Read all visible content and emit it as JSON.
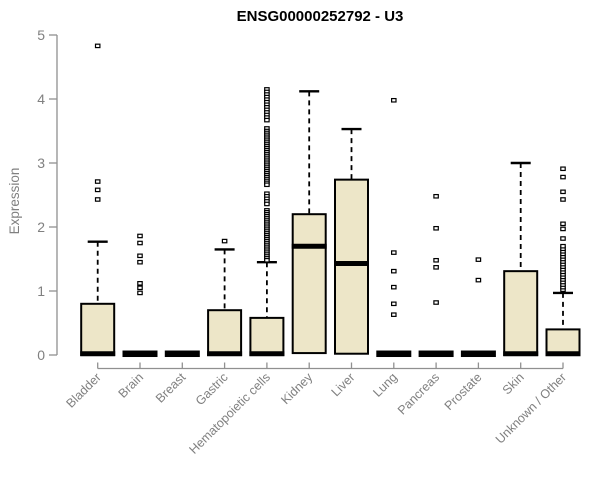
{
  "chart_data": {
    "type": "boxplot",
    "title": "ENSG00000252792 - U3",
    "ylabel": "Expression",
    "xlabel": "",
    "ylim": [
      0,
      5
    ],
    "y_ticks": [
      0,
      1,
      2,
      3,
      4,
      5
    ],
    "grid": false,
    "legend": false,
    "box_fill": "#EDE6C8",
    "box_stroke": "#000000",
    "axis_color": "#909090",
    "label_color": "#808080",
    "categories": [
      "Bladder",
      "Brain",
      "Breast",
      "Gastric",
      "Hematopoietic cells",
      "Kidney",
      "Liver",
      "Lung",
      "Pancreas",
      "Prostate",
      "Skin",
      "Unknown / Other"
    ],
    "boxes": [
      {
        "category": "Bladder",
        "q1": 0,
        "median": 0.02,
        "q3": 0.8,
        "whisker_low": 0,
        "whisker_high": 1.77,
        "outliers": [
          2.43,
          2.58,
          2.71,
          4.83
        ]
      },
      {
        "category": "Brain",
        "q1": 0,
        "median": 0.02,
        "q3": 0.03,
        "whisker_low": 0,
        "whisker_high": 0.03,
        "outliers": [
          0.97,
          1.05,
          1.12,
          1.45,
          1.55,
          1.75,
          1.86
        ]
      },
      {
        "category": "Breast",
        "q1": 0,
        "median": 0.02,
        "q3": 0.03,
        "whisker_low": 0,
        "whisker_high": 0.03,
        "outliers": []
      },
      {
        "category": "Gastric",
        "q1": 0,
        "median": 0.02,
        "q3": 0.7,
        "whisker_low": 0,
        "whisker_high": 1.65,
        "outliers": [
          1.78
        ]
      },
      {
        "category": "Hematopoietic cells",
        "q1": 0,
        "median": 0.02,
        "q3": 0.58,
        "whisker_low": 0,
        "whisker_high": 1.45,
        "outliers": [
          4.15,
          4.11,
          4.07,
          4.03,
          3.99,
          3.95,
          3.91,
          3.87,
          3.83,
          3.79,
          3.75,
          3.71,
          3.67,
          3.54,
          3.5,
          3.47,
          3.44,
          3.41,
          3.38,
          3.35,
          3.32,
          3.29,
          3.26,
          3.23,
          3.2,
          3.17,
          3.14,
          3.11,
          3.08,
          3.05,
          3.02,
          2.99,
          2.96,
          2.93,
          2.9,
          2.87,
          2.84,
          2.81,
          2.78,
          2.75,
          2.72,
          2.69,
          2.66,
          2.52,
          2.48,
          2.44,
          2.4,
          2.36,
          2.26,
          2.23,
          2.2,
          2.17,
          2.14,
          2.11,
          2.08,
          2.05,
          2.02,
          1.99,
          1.96,
          1.93,
          1.9,
          1.87,
          1.84,
          1.81,
          1.78,
          1.75,
          1.72,
          1.69,
          1.66,
          1.63,
          1.6,
          1.57,
          1.54,
          1.51,
          1.48
        ]
      },
      {
        "category": "Kidney",
        "q1": 0.03,
        "median": 1.7,
        "q3": 2.2,
        "whisker_low": 0.03,
        "whisker_high": 4.12,
        "outliers": []
      },
      {
        "category": "Liver",
        "q1": 0.02,
        "median": 1.43,
        "q3": 2.74,
        "whisker_low": 0.02,
        "whisker_high": 3.53,
        "outliers": []
      },
      {
        "category": "Lung",
        "q1": 0,
        "median": 0.02,
        "q3": 0.03,
        "whisker_low": 0,
        "whisker_high": 0.03,
        "outliers": [
          0.63,
          0.8,
          1.06,
          1.31,
          1.6,
          3.98
        ]
      },
      {
        "category": "Pancreas",
        "q1": 0,
        "median": 0.02,
        "q3": 0.03,
        "whisker_low": 0,
        "whisker_high": 0.03,
        "outliers": [
          0.82,
          1.37,
          1.48,
          1.98,
          2.48
        ]
      },
      {
        "category": "Prostate",
        "q1": 0,
        "median": 0.02,
        "q3": 0.03,
        "whisker_low": 0,
        "whisker_high": 0.03,
        "outliers": [
          1.17,
          1.49
        ]
      },
      {
        "category": "Skin",
        "q1": 0,
        "median": 0.02,
        "q3": 1.31,
        "whisker_low": 0,
        "whisker_high": 3.0,
        "outliers": []
      },
      {
        "category": "Unknown / Other",
        "q1": 0,
        "median": 0.02,
        "q3": 0.4,
        "whisker_low": 0,
        "whisker_high": 0.97,
        "outliers": [
          1.02,
          1.06,
          1.1,
          1.14,
          1.18,
          1.22,
          1.26,
          1.3,
          1.34,
          1.38,
          1.42,
          1.46,
          1.5,
          1.54,
          1.58,
          1.62,
          1.66,
          1.7,
          1.82,
          1.97,
          2.05,
          2.43,
          2.55,
          2.78,
          2.91
        ]
      }
    ]
  }
}
